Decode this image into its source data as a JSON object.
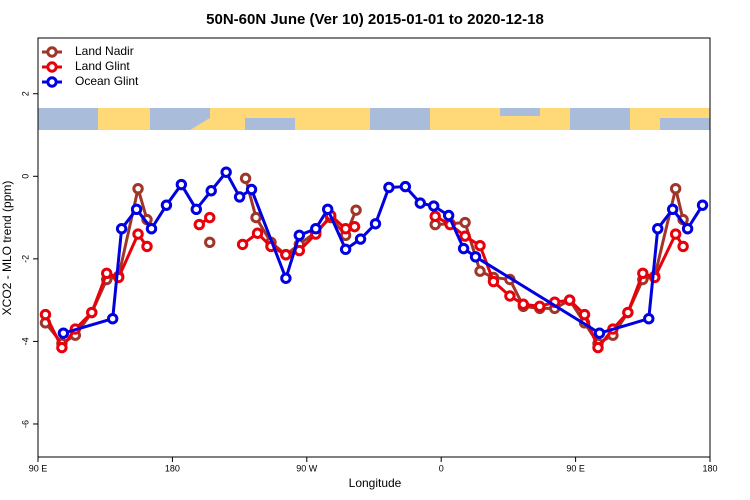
{
  "chart_data": {
    "type": "line",
    "title": "50N-60N June (Ver 10)   2015-01-01 to 2020-12-18",
    "xlabel": "Longitude",
    "ylabel": "XCO2 - MLO trend (ppm)",
    "xlim": [
      90,
      540
    ],
    "ylim": [
      -6.8,
      3.35
    ],
    "xticks": [
      {
        "value": 90,
        "label": "90 E"
      },
      180,
      {
        "value": 270,
        "label": "90 W"
      },
      {
        "value": 360,
        "label": "0"
      },
      {
        "value": 450,
        "label": "90 E"
      },
      {
        "value": 540,
        "label": "180"
      }
    ],
    "yticks": [
      -6,
      -4,
      -2,
      0,
      2
    ],
    "legend": "top-left",
    "series": [
      {
        "name": "Land Nadir",
        "color": "#a0352a",
        "x": [
          95,
          106,
          115,
          126,
          136,
          144,
          157,
          163,
          null,
          205,
          null,
          229,
          236,
          246,
          256,
          265,
          276,
          286,
          296,
          303,
          null,
          356,
          366,
          376,
          386,
          395,
          406,
          415,
          426,
          436,
          446,
          456,
          465,
          475,
          485,
          495,
          503,
          517,
          522
        ],
        "values": [
          -3.55,
          -4.05,
          -3.85,
          -3.3,
          -2.5,
          -2.42,
          -0.3,
          -1.05,
          null,
          -1.6,
          null,
          -0.05,
          -1.0,
          -1.6,
          -1.9,
          -1.65,
          -1.35,
          -1.0,
          -1.43,
          -0.82,
          null,
          -1.17,
          -1.15,
          -1.12,
          -2.3,
          -2.45,
          -2.5,
          -3.15,
          -3.2,
          -3.2,
          -3.0,
          -3.55,
          -4.05,
          -3.85,
          -3.3,
          -2.5,
          -2.42,
          -0.3,
          -1.05
        ]
      },
      {
        "name": "Land Glint",
        "color": "#e8000b",
        "x": [
          95,
          106,
          115,
          126,
          136,
          144,
          157,
          163,
          null,
          198,
          205,
          null,
          227,
          237,
          246,
          256,
          265,
          276,
          286,
          296,
          302,
          null,
          356,
          366,
          376,
          386,
          395,
          406,
          415,
          426,
          436,
          446,
          456,
          465,
          475,
          485,
          495,
          503,
          517,
          522
        ],
        "values": [
          -3.35,
          -4.15,
          -3.7,
          -3.3,
          -2.35,
          -2.45,
          -1.4,
          -1.7,
          null,
          -1.17,
          -1.0,
          null,
          -1.65,
          -1.38,
          -1.7,
          -1.9,
          -1.8,
          -1.4,
          -0.95,
          -1.27,
          -1.22,
          null,
          -0.97,
          -1.17,
          -1.45,
          -1.68,
          -2.55,
          -2.9,
          -3.1,
          -3.15,
          -3.05,
          -3.0,
          -3.35,
          -4.15,
          -3.7,
          -3.3,
          -2.35,
          -2.45,
          -1.4,
          -1.7
        ]
      },
      {
        "name": "Ocean Glint",
        "color": "#0000e0",
        "x": [
          107,
          140,
          146,
          156,
          166,
          176,
          186,
          196,
          206,
          216,
          225,
          233,
          256,
          265,
          276,
          284,
          296,
          306,
          316,
          325,
          336,
          346,
          355,
          365,
          375,
          383,
          466,
          499,
          505,
          515,
          525,
          535
        ],
        "values": [
          -3.8,
          -3.45,
          -1.27,
          -0.8,
          -1.27,
          -0.7,
          -0.2,
          -0.8,
          -0.35,
          0.1,
          -0.5,
          -0.32,
          -2.47,
          -1.43,
          -1.27,
          -0.8,
          -1.77,
          -1.52,
          -1.15,
          -0.27,
          -0.25,
          -0.65,
          -0.72,
          -0.95,
          -1.75,
          -1.95,
          -3.8,
          -3.45,
          -1.27,
          -0.8,
          -1.27,
          -0.7
        ]
      }
    ]
  }
}
